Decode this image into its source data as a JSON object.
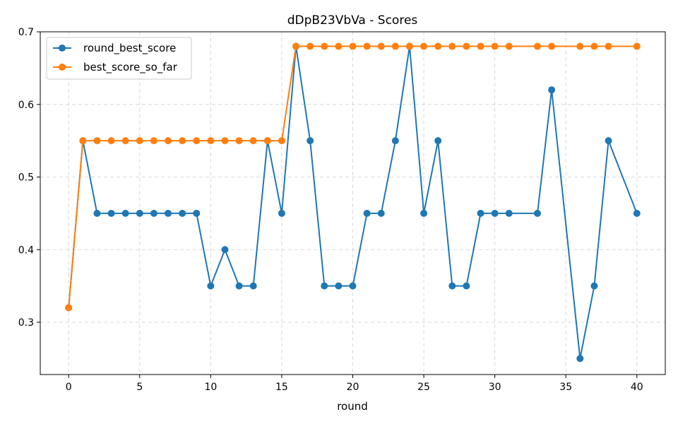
{
  "chart_data": {
    "type": "line",
    "title": "dDpB23VbVa - Scores",
    "xlabel": "round",
    "ylabel": "",
    "xlim": [
      -2,
      42
    ],
    "ylim": [
      0.228,
      0.7
    ],
    "x_ticks": [
      0,
      5,
      10,
      15,
      20,
      25,
      30,
      35,
      40
    ],
    "y_ticks": [
      0.3,
      0.4,
      0.5,
      0.6,
      0.7
    ],
    "grid": true,
    "legend_position": "top-left",
    "series": [
      {
        "name": "round_best_score",
        "color": "#1f77b4",
        "x": [
          0,
          1,
          2,
          3,
          4,
          5,
          6,
          7,
          8,
          9,
          10,
          11,
          12,
          13,
          14,
          15,
          16,
          17,
          18,
          19,
          20,
          21,
          22,
          23,
          24,
          25,
          26,
          27,
          28,
          29,
          30,
          31,
          33,
          34,
          36,
          37,
          38,
          40
        ],
        "values": [
          0.32,
          0.55,
          0.45,
          0.45,
          0.45,
          0.45,
          0.45,
          0.45,
          0.45,
          0.45,
          0.35,
          0.4,
          0.35,
          0.35,
          0.55,
          0.45,
          0.68,
          0.55,
          0.35,
          0.35,
          0.35,
          0.45,
          0.45,
          0.55,
          0.68,
          0.45,
          0.55,
          0.35,
          0.35,
          0.45,
          0.45,
          0.45,
          0.45,
          0.62,
          0.25,
          0.35,
          0.55,
          0.45
        ]
      },
      {
        "name": "best_score_so_far",
        "color": "#ff7f0e",
        "x": [
          0,
          1,
          2,
          3,
          4,
          5,
          6,
          7,
          8,
          9,
          10,
          11,
          12,
          13,
          14,
          15,
          16,
          17,
          18,
          19,
          20,
          21,
          22,
          23,
          24,
          25,
          26,
          27,
          28,
          29,
          30,
          31,
          33,
          34,
          36,
          37,
          38,
          40
        ],
        "values": [
          0.32,
          0.55,
          0.55,
          0.55,
          0.55,
          0.55,
          0.55,
          0.55,
          0.55,
          0.55,
          0.55,
          0.55,
          0.55,
          0.55,
          0.55,
          0.55,
          0.68,
          0.68,
          0.68,
          0.68,
          0.68,
          0.68,
          0.68,
          0.68,
          0.68,
          0.68,
          0.68,
          0.68,
          0.68,
          0.68,
          0.68,
          0.68,
          0.68,
          0.68,
          0.68,
          0.68,
          0.68,
          0.68
        ]
      }
    ]
  }
}
